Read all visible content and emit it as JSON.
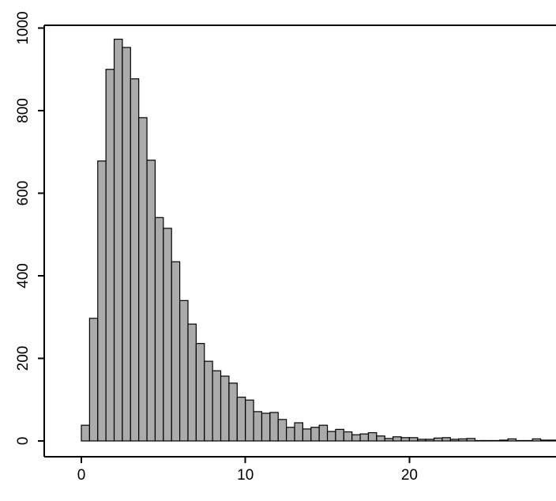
{
  "chart_data": {
    "type": "bar",
    "subtype": "histogram",
    "title": "",
    "xlabel": "",
    "ylabel": "",
    "bin_width": 0.5,
    "bin_start": 0,
    "bin_edges": [
      0,
      0.5,
      1,
      1.5,
      2,
      2.5,
      3,
      3.5,
      4,
      4.5,
      5,
      5.5,
      6,
      6.5,
      7,
      7.5,
      8,
      8.5,
      9,
      9.5,
      10,
      10.5,
      11,
      11.5,
      12,
      12.5,
      13,
      13.5,
      14,
      14.5,
      15,
      15.5,
      16,
      16.5,
      17,
      17.5,
      18,
      18.5,
      19,
      19.5,
      20,
      20.5,
      21,
      21.5,
      22,
      22.5,
      23,
      23.5,
      24,
      24.5,
      25,
      25.5,
      26,
      26.5,
      27,
      27.5,
      28,
      28.5,
      29
    ],
    "values": [
      38,
      297,
      678,
      900,
      973,
      953,
      877,
      783,
      680,
      541,
      515,
      434,
      340,
      283,
      236,
      193,
      170,
      157,
      140,
      106,
      99,
      71,
      67,
      69,
      52,
      33,
      44,
      29,
      33,
      38,
      23,
      28,
      22,
      15,
      17,
      20,
      12,
      6,
      10,
      8,
      8,
      4,
      4,
      7,
      8,
      4,
      5,
      6,
      1,
      1,
      1,
      2,
      5,
      1,
      1,
      5,
      2,
      2
    ],
    "x_ticks": [
      0,
      10,
      20
    ],
    "x_tick_labels": [
      "0",
      "10",
      "20"
    ],
    "y_ticks": [
      0,
      200,
      400,
      600,
      800,
      1000
    ],
    "y_tick_labels": [
      "0",
      "200",
      "400",
      "600",
      "800",
      "1000"
    ],
    "xlim": [
      -2.26,
      28.94
    ],
    "ylim": [
      0,
      1000
    ],
    "grid": "off",
    "legend": "none",
    "bar_fill_color": "#ababab",
    "bar_border_color": "#000000",
    "axis_color": "#000000",
    "background_color": "#ffffff",
    "tick_label_color": "#000000"
  }
}
